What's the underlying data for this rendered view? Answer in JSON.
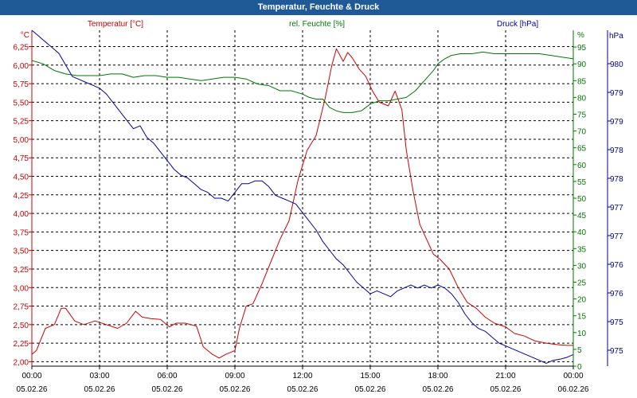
{
  "window": {
    "title": "Temperatur, Feuchte & Druck"
  },
  "colors": {
    "temperature": "#cc0000",
    "humidity": "#007700",
    "pressure": "#00009e",
    "title_bar": "#1f5a97",
    "grid": "#000000"
  },
  "chart_data": {
    "type": "line",
    "title": "Temperatur, Feuchte & Druck",
    "grid": true,
    "x_tick_labels": [
      {
        "time": "00:00",
        "date": "05.02.26"
      },
      {
        "time": "03:00",
        "date": "05.02.26"
      },
      {
        "time": "06:00",
        "date": "05.02.26"
      },
      {
        "time": "09:00",
        "date": "05.02.26"
      },
      {
        "time": "12:00",
        "date": "05.02.26"
      },
      {
        "time": "15:00",
        "date": "05.02.26"
      },
      {
        "time": "18:00",
        "date": "05.02.26"
      },
      {
        "time": "21:00",
        "date": "05.02.26"
      },
      {
        "time": "00:00",
        "date": "06.02.26"
      }
    ],
    "x_range_hours": [
      0,
      24
    ],
    "axes": {
      "temperature": {
        "label": "Temperatur [°C]",
        "unit": "°C",
        "range": [
          1.94,
          6.47
        ],
        "ticks": [
          "6,25",
          "6,00",
          "5,75",
          "5,50",
          "5,25",
          "5,00",
          "4,75",
          "4,50",
          "4,25",
          "4,00",
          "3,75",
          "3,50",
          "3,25",
          "3,00",
          "2,75",
          "2,50",
          "2,25",
          "2,00"
        ],
        "tick_values": [
          6.25,
          6.0,
          5.75,
          5.5,
          5.25,
          5.0,
          4.75,
          4.5,
          4.25,
          4.0,
          3.75,
          3.5,
          3.25,
          3.0,
          2.75,
          2.5,
          2.25,
          2.0
        ]
      },
      "humidity": {
        "label": "rel. Feuchte [%]",
        "unit": "%",
        "range": [
          0,
          100
        ],
        "ticks": [
          "95",
          "90",
          "85",
          "80",
          "75",
          "70",
          "65",
          "60",
          "55",
          "50",
          "45",
          "40",
          "35",
          "30",
          "25",
          "20",
          "15",
          "10",
          "5",
          "0"
        ],
        "tick_values": [
          95,
          90,
          85,
          80,
          75,
          70,
          65,
          60,
          55,
          50,
          45,
          40,
          35,
          30,
          25,
          20,
          15,
          10,
          5,
          0
        ]
      },
      "pressure": {
        "label": "Druck [hPa]",
        "unit": "hPa",
        "range": [
          974.6,
          980.4
        ],
        "ticks": [
          "980",
          "979",
          "979",
          "978",
          "978",
          "977",
          "977",
          "976",
          "976",
          "975",
          "975"
        ],
        "tick_values": [
          980,
          979.4,
          978.8,
          978.2,
          977.6,
          977.0,
          976.4,
          975.8,
          975.2,
          974.6,
          974.6
        ]
      }
    },
    "series": [
      {
        "name": "Temperatur [°C]",
        "axis": "temperature",
        "x": [
          0,
          0.2,
          0.6,
          1.0,
          1.3,
          1.5,
          1.9,
          2.3,
          2.8,
          3.3,
          3.8,
          4.2,
          4.6,
          4.9,
          5.3,
          5.7,
          6.1,
          6.4,
          6.8,
          7.3,
          7.6,
          8.0,
          8.3,
          8.6,
          9.0,
          9.2,
          9.5,
          9.8,
          10.2,
          10.6,
          11.0,
          11.4,
          11.8,
          12.2,
          12.6,
          13.0,
          13.3,
          13.5,
          13.8,
          14.0,
          14.2,
          14.5,
          14.8,
          15.1,
          15.4,
          15.8,
          16.1,
          16.4,
          16.6,
          16.9,
          17.2,
          17.5,
          17.8,
          18.1,
          18.5,
          18.9,
          19.3,
          19.7,
          20.1,
          20.5,
          21.0,
          21.4,
          21.8,
          22.3,
          22.8,
          23.3,
          23.7,
          24.0
        ],
        "values": [
          2.1,
          2.15,
          2.45,
          2.5,
          2.72,
          2.72,
          2.55,
          2.5,
          2.55,
          2.5,
          2.45,
          2.52,
          2.68,
          2.6,
          2.58,
          2.57,
          2.47,
          2.52,
          2.52,
          2.48,
          2.2,
          2.1,
          2.05,
          2.1,
          2.15,
          2.45,
          2.75,
          2.78,
          3.05,
          3.35,
          3.65,
          3.9,
          4.45,
          4.85,
          5.05,
          5.55,
          6.0,
          6.22,
          6.05,
          6.17,
          6.1,
          5.95,
          5.85,
          5.65,
          5.5,
          5.45,
          5.65,
          5.4,
          4.85,
          4.3,
          3.85,
          3.65,
          3.45,
          3.38,
          3.25,
          3.0,
          2.8,
          2.72,
          2.6,
          2.52,
          2.47,
          2.38,
          2.35,
          2.28,
          2.25,
          2.23,
          2.22,
          2.22
        ]
      },
      {
        "name": "rel. Feuchte [%]",
        "axis": "humidity",
        "x": [
          0,
          0.5,
          1.0,
          1.5,
          2.0,
          2.5,
          3.0,
          3.5,
          4.0,
          4.5,
          5.0,
          5.5,
          6.0,
          6.5,
          7.0,
          7.5,
          8.0,
          8.5,
          9.0,
          9.5,
          10.0,
          10.5,
          11.0,
          11.5,
          12.0,
          12.3,
          12.6,
          12.9,
          13.2,
          13.5,
          13.8,
          14.2,
          14.6,
          15.0,
          15.4,
          15.8,
          16.2,
          16.6,
          17.0,
          17.4,
          17.8,
          18.0,
          18.3,
          18.6,
          19.0,
          19.5,
          20.0,
          20.5,
          21.0,
          21.5,
          22.0,
          22.5,
          23.0,
          23.5,
          24.0
        ],
        "values": [
          91,
          90,
          88,
          87,
          86.5,
          86.5,
          86.5,
          87,
          87,
          86,
          86.5,
          86.5,
          86,
          86,
          85.5,
          85,
          85.5,
          86,
          86,
          85.5,
          84,
          83.5,
          82,
          82,
          81,
          80,
          79.5,
          79.5,
          77,
          76,
          75.5,
          75.5,
          76,
          78,
          79,
          79,
          79.5,
          80,
          82,
          85,
          88,
          90,
          91.5,
          92.5,
          93,
          93,
          93.5,
          93,
          93,
          93,
          93,
          93,
          92.5,
          92,
          91.5
        ]
      },
      {
        "name": "Druck [hPa]",
        "axis": "pressure",
        "x": [
          0,
          0.3,
          0.6,
          0.9,
          1.2,
          1.5,
          1.8,
          2.1,
          2.4,
          2.7,
          3.0,
          3.3,
          3.6,
          3.9,
          4.2,
          4.5,
          4.8,
          5.1,
          5.4,
          5.7,
          6.0,
          6.3,
          6.6,
          6.9,
          7.2,
          7.5,
          7.8,
          8.1,
          8.4,
          8.7,
          9.0,
          9.3,
          9.6,
          9.9,
          10.2,
          10.5,
          10.8,
          11.1,
          11.4,
          11.7,
          12.0,
          12.3,
          12.6,
          12.9,
          13.2,
          13.5,
          13.8,
          14.1,
          14.4,
          14.7,
          15.0,
          15.3,
          15.6,
          15.9,
          16.2,
          16.5,
          16.8,
          17.1,
          17.4,
          17.7,
          18.0,
          18.3,
          18.6,
          18.9,
          19.2,
          19.5,
          19.8,
          20.1,
          20.4,
          20.7,
          21.0,
          21.3,
          21.6,
          21.9,
          22.2,
          22.5,
          22.8,
          23.1,
          23.4,
          23.7,
          24.0
        ],
        "values": [
          980.4,
          980.3,
          980.2,
          980.1,
          980.0,
          979.8,
          979.6,
          979.55,
          979.5,
          979.45,
          979.4,
          979.3,
          979.15,
          979.0,
          978.85,
          978.7,
          978.75,
          978.55,
          978.45,
          978.3,
          978.15,
          978.0,
          977.9,
          977.85,
          977.75,
          977.65,
          977.6,
          977.5,
          977.5,
          977.45,
          977.6,
          977.75,
          977.75,
          977.8,
          977.8,
          977.7,
          977.55,
          977.5,
          977.45,
          977.4,
          977.25,
          977.1,
          976.95,
          976.75,
          976.6,
          976.45,
          976.35,
          976.2,
          976.05,
          975.95,
          975.85,
          975.9,
          975.85,
          975.8,
          975.9,
          975.95,
          976.0,
          975.95,
          976.0,
          975.95,
          976.0,
          975.95,
          975.85,
          975.7,
          975.5,
          975.35,
          975.25,
          975.2,
          975.1,
          975.0,
          974.95,
          974.9,
          974.85,
          974.8,
          974.75,
          974.7,
          974.65,
          974.7,
          974.72,
          974.75,
          974.8
        ]
      }
    ]
  }
}
